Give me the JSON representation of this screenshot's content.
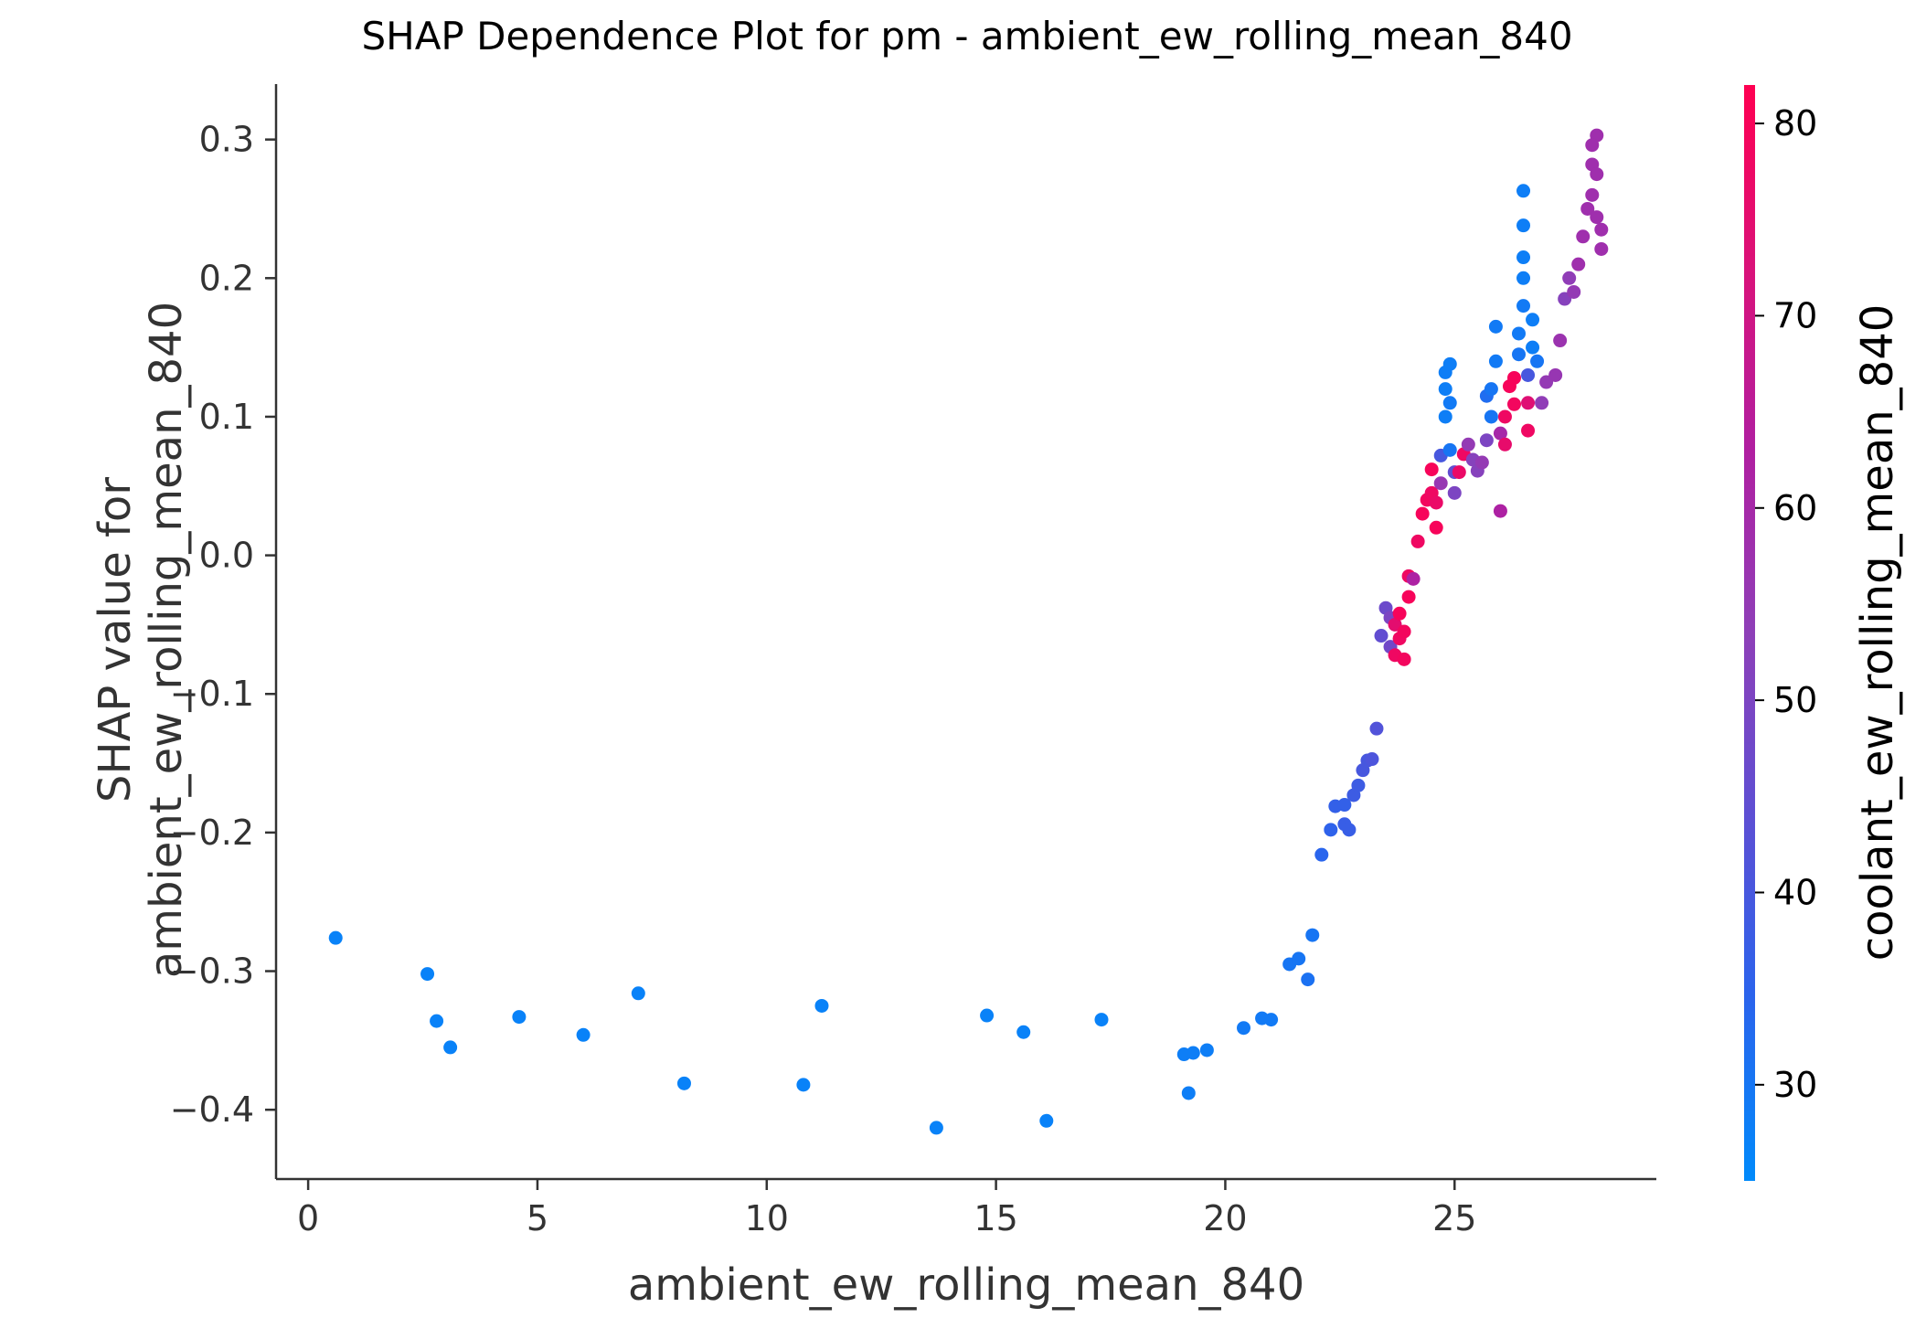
{
  "chart_data": {
    "type": "scatter",
    "title": "SHAP Dependence Plot for pm - ambient_ew_rolling_mean_840",
    "xlabel": "ambient_ew_rolling_mean_840",
    "ylabel_lines": [
      "SHAP value for",
      "ambient_ew_rolling_mean_840"
    ],
    "xlim": [
      -0.7,
      29.4
    ],
    "ylim": [
      -0.45,
      0.34
    ],
    "x_ticks": [
      0,
      5,
      10,
      15,
      20,
      25
    ],
    "x_tick_labels": [
      "0",
      "5",
      "10",
      "15",
      "20",
      "25"
    ],
    "y_ticks": [
      -0.4,
      -0.3,
      -0.2,
      -0.1,
      0.0,
      0.1,
      0.2,
      0.3
    ],
    "y_tick_labels": [
      "−0.4",
      "−0.3",
      "−0.2",
      "−0.1",
      "0.0",
      "0.1",
      "0.2",
      "0.3"
    ],
    "grid": false,
    "colorbar": {
      "label": "coolant_ew_rolling_mean_840",
      "range": [
        25,
        82
      ],
      "ticks": [
        30,
        40,
        50,
        60,
        70,
        80
      ],
      "tick_labels": [
        "30",
        "40",
        "50",
        "60",
        "70",
        "80"
      ],
      "colormap": [
        "#008afb",
        "#2b63ec",
        "#5c4fd4",
        "#8e3fb8",
        "#b11ea0",
        "#d9127a",
        "#ff0051"
      ]
    },
    "colors": {
      "axis": "#333333",
      "blue": "#008afb",
      "red": "#ff0051",
      "purple": "#9a2bb0"
    },
    "points": [
      [
        0.6,
        -0.276,
        27
      ],
      [
        2.6,
        -0.302,
        27
      ],
      [
        2.8,
        -0.336,
        27
      ],
      [
        3.1,
        -0.355,
        27
      ],
      [
        4.6,
        -0.333,
        27
      ],
      [
        6.0,
        -0.346,
        27
      ],
      [
        7.2,
        -0.316,
        27
      ],
      [
        8.2,
        -0.381,
        27
      ],
      [
        10.8,
        -0.382,
        27
      ],
      [
        11.2,
        -0.325,
        27
      ],
      [
        13.7,
        -0.413,
        27
      ],
      [
        14.8,
        -0.332,
        27
      ],
      [
        15.6,
        -0.344,
        27
      ],
      [
        16.1,
        -0.408,
        27
      ],
      [
        17.3,
        -0.335,
        27
      ],
      [
        19.1,
        -0.36,
        28
      ],
      [
        19.3,
        -0.359,
        28
      ],
      [
        19.2,
        -0.388,
        28
      ],
      [
        19.6,
        -0.357,
        28
      ],
      [
        20.4,
        -0.341,
        29
      ],
      [
        20.8,
        -0.334,
        29
      ],
      [
        21.0,
        -0.335,
        29
      ],
      [
        21.4,
        -0.295,
        30
      ],
      [
        21.6,
        -0.291,
        30
      ],
      [
        21.8,
        -0.306,
        31
      ],
      [
        21.9,
        -0.274,
        30
      ],
      [
        22.1,
        -0.216,
        34
      ],
      [
        22.3,
        -0.198,
        35
      ],
      [
        22.4,
        -0.181,
        36
      ],
      [
        22.6,
        -0.18,
        36
      ],
      [
        22.6,
        -0.194,
        37
      ],
      [
        22.7,
        -0.198,
        37
      ],
      [
        22.8,
        -0.173,
        38
      ],
      [
        22.9,
        -0.166,
        38
      ],
      [
        23.0,
        -0.155,
        40
      ],
      [
        23.1,
        -0.148,
        40
      ],
      [
        23.2,
        -0.147,
        41
      ],
      [
        23.3,
        -0.125,
        42
      ],
      [
        23.4,
        -0.058,
        45
      ],
      [
        23.5,
        -0.038,
        47
      ],
      [
        23.6,
        -0.045,
        50
      ],
      [
        23.6,
        -0.066,
        48
      ],
      [
        23.7,
        -0.05,
        75
      ],
      [
        23.7,
        -0.072,
        78
      ],
      [
        23.8,
        -0.042,
        80
      ],
      [
        23.8,
        -0.06,
        78
      ],
      [
        23.9,
        -0.075,
        79
      ],
      [
        23.9,
        -0.055,
        79
      ],
      [
        24.0,
        -0.03,
        80
      ],
      [
        24.0,
        -0.015,
        78
      ],
      [
        24.1,
        -0.017,
        62
      ],
      [
        24.2,
        0.01,
        78
      ],
      [
        24.3,
        0.03,
        80
      ],
      [
        24.4,
        0.04,
        79
      ],
      [
        24.5,
        0.045,
        78
      ],
      [
        24.5,
        0.062,
        80
      ],
      [
        24.6,
        0.02,
        80
      ],
      [
        24.6,
        0.038,
        77
      ],
      [
        24.7,
        0.052,
        56
      ],
      [
        24.7,
        0.072,
        40
      ],
      [
        24.8,
        0.1,
        28
      ],
      [
        24.8,
        0.12,
        28
      ],
      [
        24.8,
        0.132,
        28
      ],
      [
        24.9,
        0.138,
        28
      ],
      [
        24.9,
        0.11,
        29
      ],
      [
        24.9,
        0.076,
        30
      ],
      [
        25.0,
        0.045,
        50
      ],
      [
        25.0,
        0.06,
        45
      ],
      [
        25.1,
        0.06,
        77
      ],
      [
        25.2,
        0.073,
        78
      ],
      [
        25.3,
        0.08,
        55
      ],
      [
        25.4,
        0.069,
        52
      ],
      [
        25.5,
        0.061,
        52
      ],
      [
        25.6,
        0.067,
        55
      ],
      [
        25.7,
        0.083,
        50
      ],
      [
        25.7,
        0.115,
        32
      ],
      [
        25.8,
        0.12,
        30
      ],
      [
        25.8,
        0.1,
        30
      ],
      [
        25.9,
        0.165,
        29
      ],
      [
        25.9,
        0.14,
        29
      ],
      [
        26.0,
        0.088,
        60
      ],
      [
        26.0,
        0.032,
        62
      ],
      [
        26.1,
        0.08,
        76
      ],
      [
        26.1,
        0.1,
        78
      ],
      [
        26.2,
        0.122,
        80
      ],
      [
        26.3,
        0.109,
        79
      ],
      [
        26.3,
        0.128,
        80
      ],
      [
        26.4,
        0.145,
        30
      ],
      [
        26.4,
        0.16,
        29
      ],
      [
        26.5,
        0.18,
        29
      ],
      [
        26.5,
        0.2,
        28
      ],
      [
        26.5,
        0.215,
        28
      ],
      [
        26.5,
        0.238,
        28
      ],
      [
        26.5,
        0.263,
        28
      ],
      [
        26.6,
        0.13,
        40
      ],
      [
        26.6,
        0.11,
        74
      ],
      [
        26.6,
        0.09,
        78
      ],
      [
        26.7,
        0.15,
        28
      ],
      [
        26.7,
        0.17,
        28
      ],
      [
        26.8,
        0.14,
        30
      ],
      [
        26.9,
        0.11,
        54
      ],
      [
        27.0,
        0.125,
        55
      ],
      [
        27.2,
        0.13,
        56
      ],
      [
        27.3,
        0.155,
        57
      ],
      [
        27.4,
        0.185,
        52
      ],
      [
        27.5,
        0.2,
        54
      ],
      [
        27.6,
        0.19,
        55
      ],
      [
        27.7,
        0.21,
        58
      ],
      [
        27.8,
        0.23,
        58
      ],
      [
        27.9,
        0.25,
        58
      ],
      [
        28.0,
        0.26,
        58
      ],
      [
        28.0,
        0.282,
        58
      ],
      [
        28.1,
        0.275,
        58
      ],
      [
        28.1,
        0.303,
        58
      ],
      [
        28.2,
        0.235,
        58
      ],
      [
        28.2,
        0.221,
        58
      ],
      [
        28.1,
        0.244,
        58
      ],
      [
        28.0,
        0.296,
        58
      ]
    ]
  }
}
